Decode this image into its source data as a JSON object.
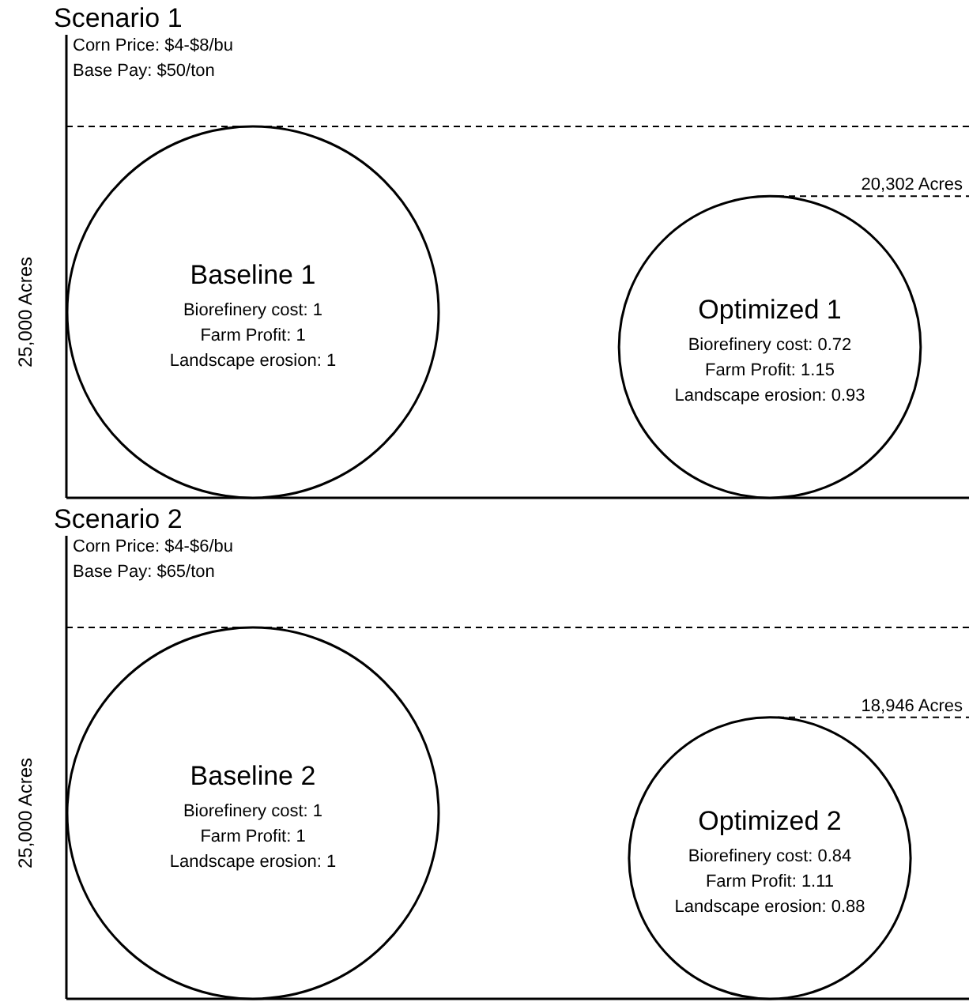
{
  "chart_data": [
    {
      "type": "other",
      "title": "Scenario 1",
      "categories": [
        "Baseline 1",
        "Optimized 1"
      ],
      "values": [
        25000,
        20302
      ],
      "value_labels": [
        "25,000 Acres",
        "20,302 Acres"
      ],
      "annotations": [
        "Corn Price: $4-$8/bu",
        "Base Pay: $50/ton",
        {
          "text": "Biorefinery cost: 1",
          "x": "Baseline 1"
        },
        {
          "text": "Farm Profit: 1",
          "x": "Baseline 1"
        },
        {
          "text": "Landscape erosion: 1",
          "x": "Baseline 1"
        },
        {
          "text": "Biorefinery cost: 0.72",
          "x": "Optimized 1"
        },
        {
          "text": "Farm Profit: 1.15",
          "x": "Optimized 1"
        },
        {
          "text": "Landscape erosion: 0.93",
          "x": "Optimized 1"
        }
      ]
    },
    {
      "type": "other",
      "title": "Scenario 2",
      "categories": [
        "Baseline 2",
        "Optimized 2"
      ],
      "values": [
        25000,
        18946
      ],
      "value_labels": [
        "25,000 Acres",
        "18,946 Acres"
      ],
      "annotations": [
        "Corn Price: $4-$6/bu",
        "Base Pay: $65/ton",
        {
          "text": "Biorefinery cost: 1",
          "x": "Baseline 2"
        },
        {
          "text": "Farm Profit: 1",
          "x": "Baseline 2"
        },
        {
          "text": "Landscape erosion: 1",
          "x": "Baseline 2"
        },
        {
          "text": "Biorefinery cost: 0.84",
          "x": "Optimized 2"
        },
        {
          "text": "Farm Profit: 1.11",
          "x": "Optimized 2"
        },
        {
          "text": "Landscape erosion: 0.88",
          "x": "Optimized 2"
        }
      ]
    }
  ]
}
